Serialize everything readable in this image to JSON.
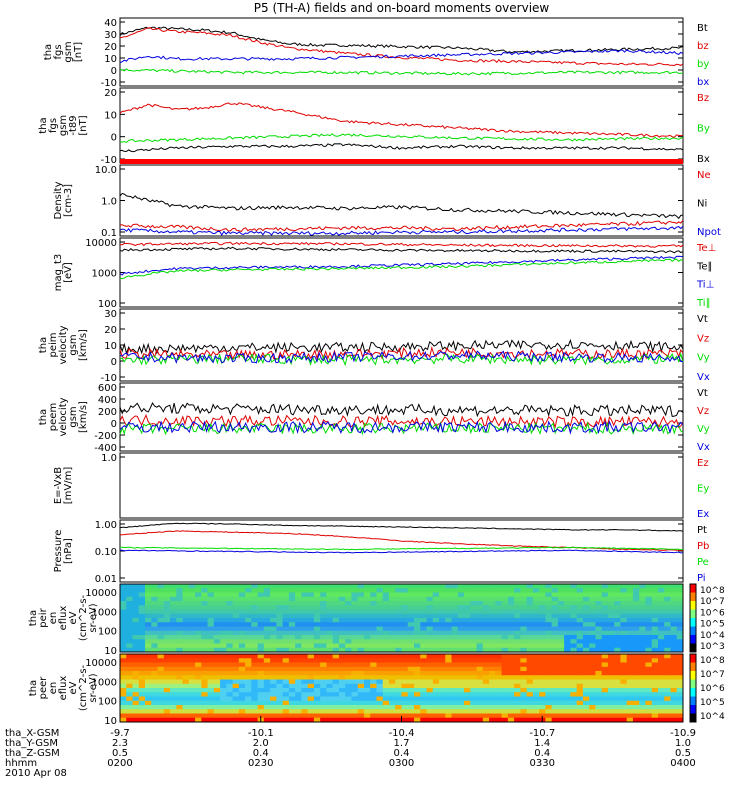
{
  "title": "P5 (TH-A) fields and on-board moments overview",
  "colors": {
    "black": "#000000",
    "red": "#e00000",
    "green": "#00dd00",
    "blue": "#0000e0"
  },
  "chart_data": [
    {
      "type": "line",
      "ylabel": [
        "tha",
        "fgs",
        "gsm",
        "[nT]"
      ],
      "yticks": [
        "40",
        "30",
        "20",
        "10",
        "0",
        "-10"
      ],
      "ylim": [
        -10,
        40
      ],
      "legend": [
        {
          "name": "Bt",
          "color": "black"
        },
        {
          "name": "bz",
          "color": "red"
        },
        {
          "name": "by",
          "color": "green"
        },
        {
          "name": "bx",
          "color": "blue"
        }
      ],
      "series": [
        {
          "name": "Bt",
          "color": "black",
          "x": [
            0,
            0.05,
            0.1,
            0.15,
            0.2,
            0.25,
            0.3,
            0.35,
            0.4,
            0.5,
            0.6,
            0.7,
            0.8,
            0.9,
            1.0
          ],
          "values": [
            28,
            33,
            32,
            31,
            29,
            24,
            21,
            20,
            20,
            19,
            18,
            15,
            16,
            17,
            18
          ]
        },
        {
          "name": "bz",
          "color": "red",
          "x": [
            0,
            0.05,
            0.1,
            0.15,
            0.2,
            0.25,
            0.3,
            0.35,
            0.4,
            0.5,
            0.6,
            0.7,
            0.8,
            0.9,
            1.0
          ],
          "values": [
            25,
            32,
            30,
            29,
            27,
            22,
            18,
            16,
            14,
            11,
            9,
            8,
            7,
            6,
            6
          ]
        },
        {
          "name": "by",
          "color": "green",
          "x": [
            0,
            0.2,
            0.4,
            0.6,
            0.8,
            1.0
          ],
          "values": [
            2,
            0,
            0,
            -1,
            0,
            0
          ]
        },
        {
          "name": "bx",
          "color": "blue",
          "x": [
            0,
            0.05,
            0.1,
            0.2,
            0.3,
            0.4,
            0.5,
            0.6,
            0.7,
            0.8,
            0.9,
            1.0
          ],
          "values": [
            8,
            12,
            10,
            10,
            10,
            11,
            12,
            13,
            14,
            15,
            16,
            14
          ]
        }
      ]
    },
    {
      "type": "line",
      "ylabel": [
        "tha",
        "fgs",
        "gsm",
        "-t89",
        "[nT]"
      ],
      "yticks": [
        "20",
        "10",
        "0",
        "-10"
      ],
      "ylim": [
        -15,
        30
      ],
      "legend": [
        {
          "name": "Bz",
          "color": "red"
        },
        {
          "name": "By",
          "color": "green"
        },
        {
          "name": "Bx",
          "color": "black"
        }
      ],
      "series": [
        {
          "name": "Bz",
          "color": "red",
          "x": [
            0,
            0.05,
            0.1,
            0.15,
            0.2,
            0.3,
            0.4,
            0.5,
            0.6,
            0.7,
            0.8,
            0.9,
            1.0
          ],
          "values": [
            15,
            20,
            17,
            18,
            21,
            16,
            10,
            8,
            6,
            4,
            3,
            2,
            1
          ]
        },
        {
          "name": "By",
          "color": "green",
          "x": [
            0,
            0.2,
            0.4,
            0.6,
            0.8,
            1.0
          ],
          "values": [
            -2,
            0,
            2,
            0,
            -1,
            0
          ]
        },
        {
          "name": "Bx",
          "color": "black",
          "x": [
            0,
            0.1,
            0.2,
            0.3,
            0.4,
            0.5,
            0.6,
            0.7,
            0.8,
            0.9,
            1.0
          ],
          "values": [
            -8,
            -6,
            -5,
            -5,
            -4,
            -6,
            -5,
            -6,
            -6,
            -6,
            -7
          ]
        }
      ]
    },
    {
      "type": "line",
      "ylabel": [
        "Density",
        "[cm-3]"
      ],
      "yticks": [
        "10.0",
        "1.0",
        "0.1"
      ],
      "ylim": [
        0.1,
        10
      ],
      "log": true,
      "legend": [
        {
          "name": "Ne",
          "color": "red"
        },
        {
          "name": "Ni",
          "color": "black"
        },
        {
          "name": "Npot",
          "color": "blue"
        }
      ],
      "series": [
        {
          "name": "Ni",
          "color": "black",
          "x": [
            0,
            0.05,
            0.1,
            0.2,
            0.3,
            0.4,
            0.5,
            0.6,
            0.7,
            0.8,
            0.9,
            1.0
          ],
          "values": [
            1.5,
            1.0,
            0.7,
            0.6,
            0.65,
            0.6,
            0.65,
            0.55,
            0.5,
            0.45,
            0.4,
            0.35
          ]
        },
        {
          "name": "Ne",
          "color": "red",
          "x": [
            0,
            0.1,
            0.2,
            0.3,
            0.4,
            0.5,
            0.6,
            0.7,
            0.8,
            0.9,
            1.0
          ],
          "values": [
            0.2,
            0.18,
            0.15,
            0.16,
            0.17,
            0.17,
            0.16,
            0.18,
            0.2,
            0.22,
            0.25
          ]
        },
        {
          "name": "Npot",
          "color": "blue",
          "x": [
            0,
            0.1,
            0.2,
            0.3,
            0.4,
            0.5,
            0.6,
            0.7,
            0.8,
            0.9,
            1.0
          ],
          "values": [
            0.15,
            0.13,
            0.12,
            0.12,
            0.12,
            0.13,
            0.13,
            0.14,
            0.15,
            0.16,
            0.17
          ]
        }
      ]
    },
    {
      "type": "line",
      "ylabel": [
        "mag_t3",
        "[eV]"
      ],
      "yticks": [
        "10000",
        "1000",
        "100"
      ],
      "ylim": [
        100,
        10000
      ],
      "log": true,
      "legend": [
        {
          "name": "Te⊥",
          "color": "red"
        },
        {
          "name": "Te∥",
          "color": "black"
        },
        {
          "name": "Ti⊥",
          "color": "blue"
        },
        {
          "name": "Ti∥",
          "color": "green"
        }
      ],
      "series": [
        {
          "name": "Te⊥",
          "color": "red",
          "x": [
            0,
            0.2,
            0.4,
            0.6,
            0.8,
            1.0
          ],
          "values": [
            6500,
            7000,
            6800,
            6200,
            6000,
            5800
          ]
        },
        {
          "name": "Te∥",
          "color": "black",
          "x": [
            0,
            0.2,
            0.4,
            0.6,
            0.8,
            1.0
          ],
          "values": [
            4500,
            5000,
            4600,
            4300,
            4200,
            4000
          ]
        },
        {
          "name": "Ti⊥",
          "color": "blue",
          "x": [
            0,
            0.1,
            0.2,
            0.4,
            0.6,
            0.8,
            1.0
          ],
          "values": [
            900,
            1300,
            1400,
            1500,
            1800,
            2300,
            2800
          ]
        },
        {
          "name": "Ti∥",
          "color": "green",
          "x": [
            0,
            0.1,
            0.2,
            0.4,
            0.6,
            0.8,
            1.0
          ],
          "values": [
            700,
            1100,
            1200,
            1300,
            1500,
            1900,
            2300
          ]
        }
      ]
    },
    {
      "type": "line",
      "ylabel": [
        "tha",
        "peim",
        "velocity",
        "gsm",
        "[km/s]"
      ],
      "yticks": [
        "30",
        "20",
        "10",
        "0",
        "-10"
      ],
      "ylim": [
        -15,
        30
      ],
      "legend": [
        {
          "name": "Vt",
          "color": "black"
        },
        {
          "name": "Vz",
          "color": "red"
        },
        {
          "name": "Vy",
          "color": "green"
        },
        {
          "name": "Vx",
          "color": "blue"
        }
      ],
      "series": [
        {
          "name": "Vt",
          "color": "black",
          "x": [
            0,
            0.2,
            0.4,
            0.6,
            0.8,
            1.0
          ],
          "values": [
            5,
            6,
            6,
            7,
            8,
            6
          ]
        },
        {
          "name": "Vz",
          "color": "red",
          "x": [
            0,
            0.2,
            0.4,
            0.6,
            0.8,
            1.0
          ],
          "values": [
            2,
            1,
            2,
            3,
            2,
            2
          ]
        },
        {
          "name": "Vy",
          "color": "green",
          "x": [
            0,
            0.2,
            0.4,
            0.6,
            0.8,
            1.0
          ],
          "values": [
            -2,
            -1,
            -2,
            -1,
            -2,
            -1
          ]
        },
        {
          "name": "Vx",
          "color": "blue",
          "x": [
            0,
            0.2,
            0.4,
            0.6,
            0.8,
            1.0
          ],
          "values": [
            0,
            -1,
            0,
            1,
            0,
            -1
          ]
        }
      ]
    },
    {
      "type": "line",
      "ylabel": [
        "tha",
        "peem",
        "velocity",
        "gsm",
        "[km/s]"
      ],
      "yticks": [
        "600",
        "400",
        "200",
        "0",
        "-200",
        "-400"
      ],
      "ylim": [
        -400,
        700
      ],
      "legend": [
        {
          "name": "Vt",
          "color": "black"
        },
        {
          "name": "Vz",
          "color": "red"
        },
        {
          "name": "Vy",
          "color": "green"
        },
        {
          "name": "Vx",
          "color": "blue"
        }
      ],
      "series": [
        {
          "name": "Vt",
          "color": "black",
          "x": [
            0,
            0.2,
            0.4,
            0.6,
            0.8,
            1.0
          ],
          "values": [
            300,
            280,
            270,
            260,
            250,
            250
          ]
        },
        {
          "name": "Vz",
          "color": "red",
          "x": [
            0,
            0.2,
            0.4,
            0.6,
            0.8,
            1.0
          ],
          "values": [
            100,
            90,
            80,
            80,
            70,
            70
          ]
        },
        {
          "name": "Vy",
          "color": "green",
          "x": [
            0,
            0.2,
            0.4,
            0.6,
            0.8,
            1.0
          ],
          "values": [
            -50,
            -40,
            -40,
            -30,
            -40,
            -30
          ]
        },
        {
          "name": "Vx",
          "color": "blue",
          "x": [
            0,
            0.2,
            0.4,
            0.6,
            0.8,
            1.0
          ],
          "values": [
            -20,
            -10,
            -15,
            -10,
            -20,
            -10
          ]
        }
      ]
    },
    {
      "type": "line",
      "ylabel": [
        "E=-VxB",
        "[mV/m]"
      ],
      "yticks": [
        "1.0"
      ],
      "ylim": [
        0,
        1
      ],
      "legend": [
        {
          "name": "Ez",
          "color": "red"
        },
        {
          "name": "Ey",
          "color": "green"
        },
        {
          "name": "Ex",
          "color": "blue"
        }
      ],
      "series": []
    },
    {
      "type": "line",
      "ylabel": [
        "Pressure",
        "[nPa]"
      ],
      "yticks": [
        "1.00",
        "0.10",
        "0.01"
      ],
      "ylim": [
        0.01,
        1.3
      ],
      "log": true,
      "legend": [
        {
          "name": "Pt",
          "color": "black"
        },
        {
          "name": "Pb",
          "color": "red"
        },
        {
          "name": "Pe",
          "color": "green"
        },
        {
          "name": "Pi",
          "color": "blue"
        }
      ],
      "series": [
        {
          "name": "Pt",
          "color": "black",
          "x": [
            0,
            0.1,
            0.2,
            0.3,
            0.4,
            0.5,
            0.6,
            0.7,
            0.8,
            0.9,
            1.0
          ],
          "values": [
            0.7,
            1.0,
            0.95,
            0.85,
            0.8,
            0.75,
            0.7,
            0.65,
            0.6,
            0.6,
            0.55
          ]
        },
        {
          "name": "Pb",
          "color": "red",
          "x": [
            0,
            0.1,
            0.2,
            0.3,
            0.4,
            0.5,
            0.6,
            0.7,
            0.8,
            0.9,
            1.0
          ],
          "values": [
            0.4,
            0.55,
            0.5,
            0.45,
            0.35,
            0.25,
            0.2,
            0.17,
            0.15,
            0.13,
            0.12
          ]
        },
        {
          "name": "Pe",
          "color": "green",
          "x": [
            0,
            0.2,
            0.4,
            0.6,
            0.8,
            1.0
          ],
          "values": [
            0.15,
            0.14,
            0.13,
            0.14,
            0.15,
            0.13
          ]
        },
        {
          "name": "Pi",
          "color": "blue",
          "x": [
            0,
            0.2,
            0.4,
            0.6,
            0.8,
            1.0
          ],
          "values": [
            0.12,
            0.11,
            0.1,
            0.11,
            0.12,
            0.1
          ]
        }
      ]
    },
    {
      "type": "heatmap",
      "ylabel": [
        "tha",
        "peir",
        "en",
        "eflux",
        "eV",
        "(cm^2-s-",
        "sr-eV)"
      ],
      "yticks": [
        "10000",
        "1000",
        "100",
        "10"
      ],
      "colorbar_ticks": [
        "10^8",
        "10^7",
        "10^6",
        "10^5",
        "10^4",
        "10^3"
      ]
    },
    {
      "type": "heatmap",
      "ylabel": [
        "tha",
        "peer",
        "en",
        "eflux",
        "eV",
        "(cm^2-s-",
        "sr-eV)"
      ],
      "yticks": [
        "10000",
        "1000",
        "100",
        "10"
      ],
      "colorbar_ticks": [
        "10^8",
        "10^7",
        "10^6",
        "10^5",
        "10^4"
      ]
    }
  ],
  "xaxis": {
    "rows": [
      {
        "label": "tha_X-GSM",
        "values": [
          "-9.7",
          "-10.1",
          "-10.4",
          "-10.7",
          "-10.9"
        ]
      },
      {
        "label": "tha_Y-GSM",
        "values": [
          "2.3",
          "2.0",
          "1.7",
          "1.4",
          "1.0"
        ]
      },
      {
        "label": "tha_Z-GSM",
        "values": [
          "0.5",
          "0.4",
          "0.4",
          "0.4",
          "0.5"
        ]
      },
      {
        "label": "hhmm",
        "values": [
          "0200",
          "0230",
          "0300",
          "0330",
          "0400"
        ]
      }
    ],
    "date": "2010 Apr 08"
  }
}
